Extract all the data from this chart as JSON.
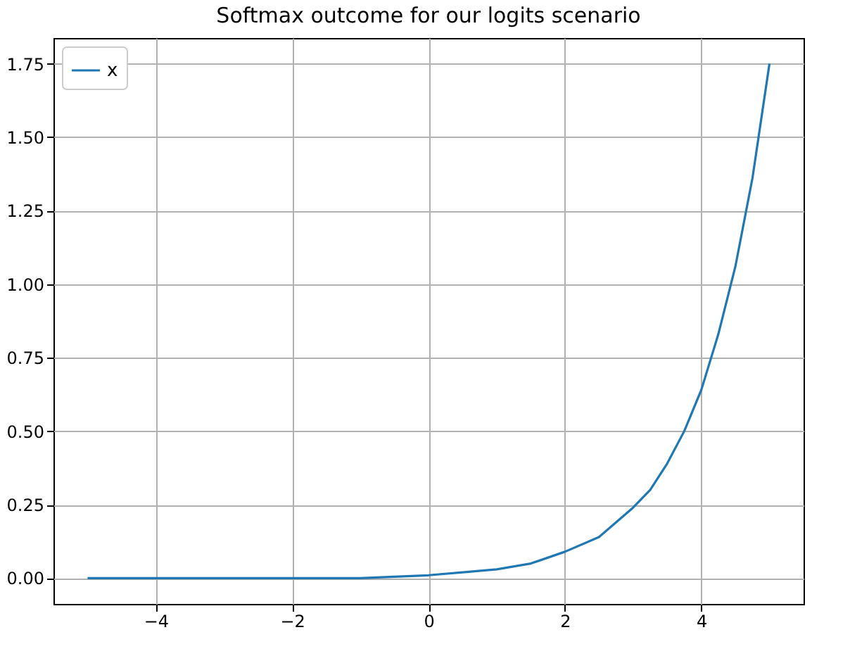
{
  "chart_data": {
    "type": "line",
    "title": "Softmax outcome for our logits scenario",
    "x": [
      -5,
      -4,
      -3,
      -2,
      -1,
      0,
      0.5,
      1,
      1.5,
      2,
      2.5,
      3,
      3.25,
      3.5,
      3.75,
      4,
      4.25,
      4.5,
      4.75,
      5
    ],
    "series": [
      {
        "name": "x",
        "color": "#1f77b4",
        "values": [
          0.0,
          0.0,
          0.0,
          0.0,
          0.0,
          0.01,
          0.02,
          0.03,
          0.05,
          0.09,
          0.14,
          0.24,
          0.3,
          0.39,
          0.5,
          0.64,
          0.83,
          1.06,
          1.36,
          1.75
        ]
      }
    ],
    "xlim": [
      -5.5,
      5.5
    ],
    "xticks": [
      {
        "value": -4,
        "label": "−4"
      },
      {
        "value": -2,
        "label": "−2"
      },
      0,
      2,
      4
    ],
    "ylim": [
      -0.0875,
      1.8375
    ],
    "yticks": [
      {
        "value": 0,
        "label": "0.00"
      },
      {
        "value": 0.25,
        "label": "0.25"
      },
      {
        "value": 0.5,
        "label": "0.50"
      },
      {
        "value": 0.75,
        "label": "0.75"
      },
      {
        "value": 1,
        "label": "1.00"
      },
      {
        "value": 1.25,
        "label": "1.25"
      },
      {
        "value": 1.5,
        "label": "1.50"
      },
      {
        "value": 1.75,
        "label": "1.75"
      }
    ],
    "grid": true,
    "legend": "top left",
    "marker": "none",
    "line_style": "solid"
  }
}
